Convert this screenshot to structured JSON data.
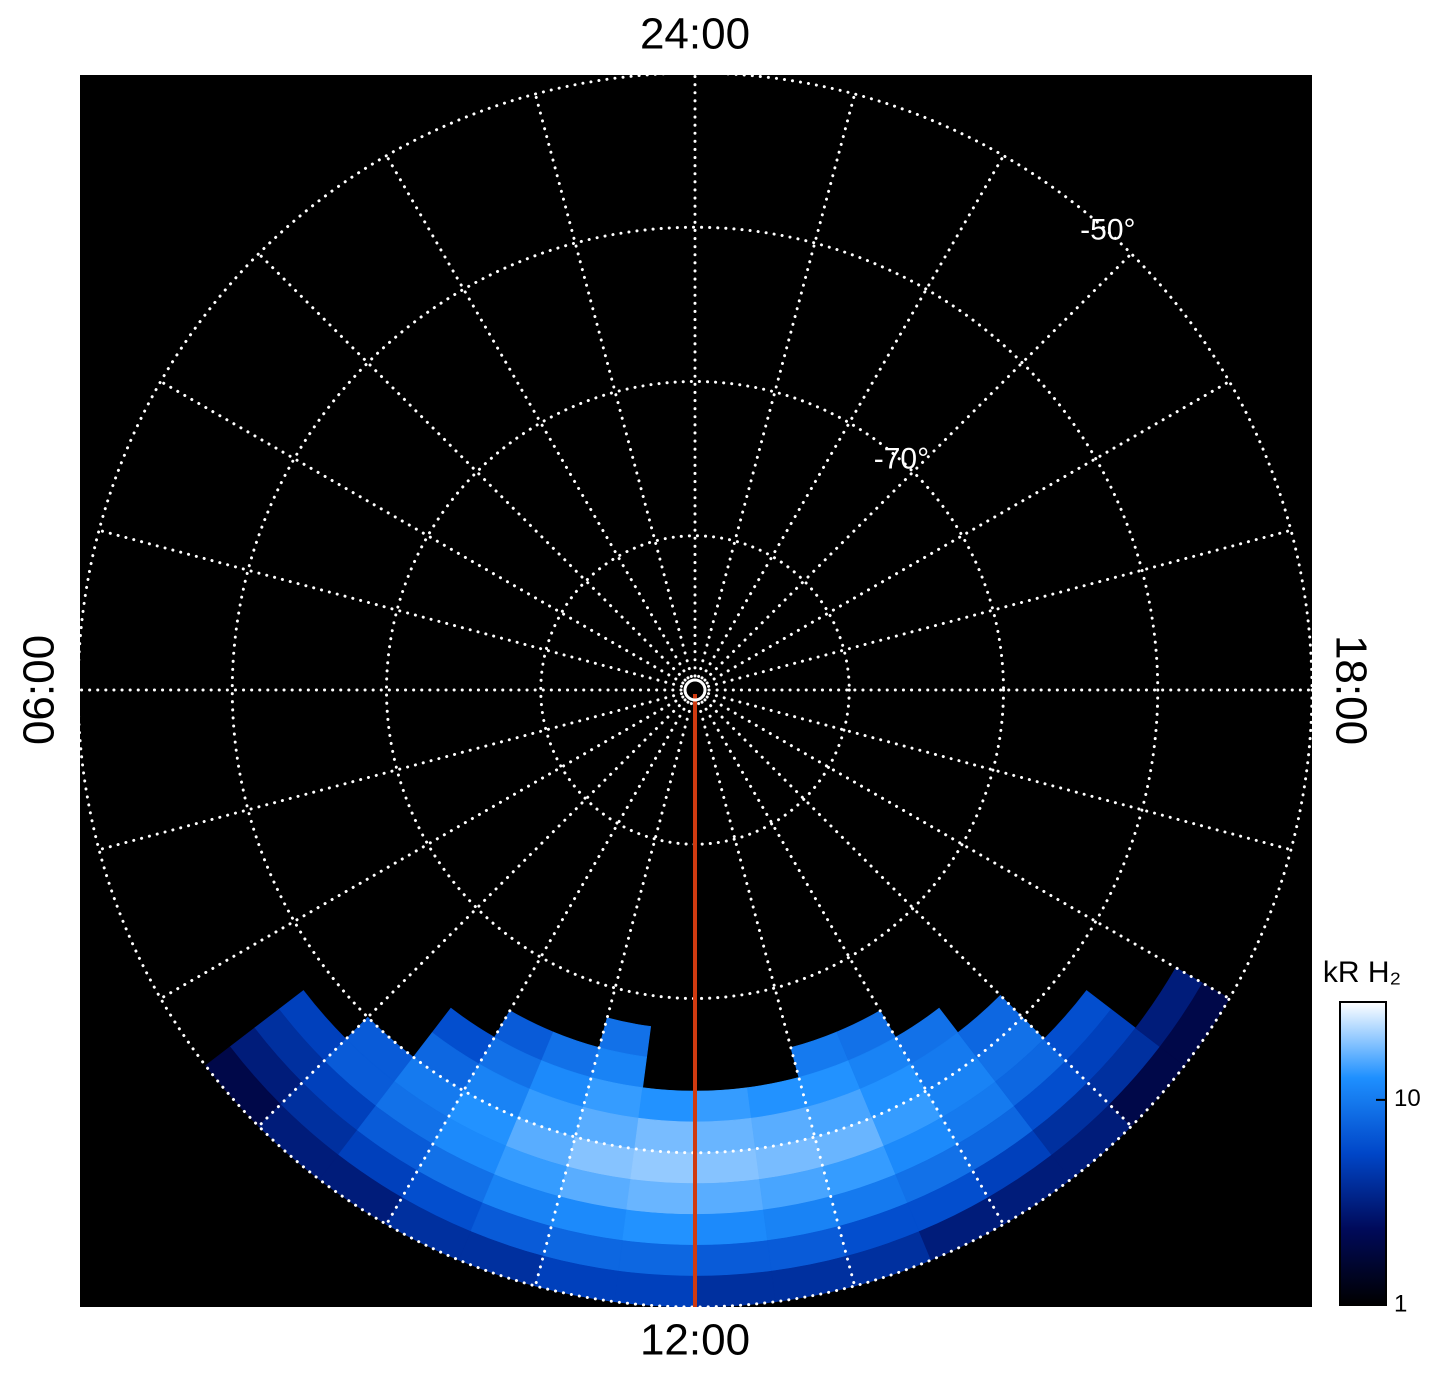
{
  "chart_data": {
    "type": "polar-heatmap",
    "lt_labels": [
      {
        "value": 24,
        "label": "24:00"
      },
      {
        "value": 6,
        "label": "06:00"
      },
      {
        "value": 18,
        "label": "18:00"
      },
      {
        "value": 12,
        "label": "12:00"
      }
    ],
    "lat_labels": [
      {
        "value": -70,
        "label": "-70°"
      },
      {
        "value": -50,
        "label": "-50°"
      }
    ],
    "rlim": [
      -90,
      -50
    ],
    "lat_circles": [
      -80,
      -70,
      -60,
      -50
    ],
    "lt_lines": [
      0,
      1,
      2,
      3,
      4,
      5,
      6,
      7,
      8,
      9,
      10,
      11,
      12,
      13,
      14,
      15,
      16,
      17,
      18,
      19,
      20,
      21,
      22,
      23
    ],
    "lt_bins": [
      8.5,
      9,
      9.5,
      10,
      10.5,
      11,
      11.5,
      12,
      12.5,
      13,
      13.5,
      14,
      14.5,
      15,
      15.5,
      16
    ],
    "lat_bins": [
      -68,
      -66,
      -64,
      -62,
      -60,
      -58,
      -56,
      -54,
      -52,
      -50
    ],
    "values": [
      [
        null,
        null,
        null,
        null,
        null,
        9,
        null,
        null,
        null,
        null,
        null,
        null,
        null,
        null,
        null
      ],
      [
        null,
        null,
        null,
        7,
        9,
        11,
        null,
        null,
        null,
        10,
        9,
        null,
        null,
        null,
        null
      ],
      [
        null,
        null,
        6,
        9,
        12,
        14,
        13,
        14,
        13,
        13,
        11,
        9,
        null,
        null,
        null
      ],
      [
        null,
        null,
        8,
        11,
        14,
        16,
        18,
        17,
        16,
        15,
        13,
        10,
        8,
        null,
        null
      ],
      [
        null,
        7,
        10,
        13,
        16,
        19,
        20,
        19,
        18,
        17,
        14,
        11,
        9,
        null,
        null
      ],
      [
        5,
        7,
        9,
        12,
        14,
        16,
        17,
        16,
        15,
        14,
        12,
        10,
        8,
        6,
        null
      ],
      [
        4,
        5,
        7,
        9,
        11,
        12,
        13,
        12,
        11,
        10,
        9,
        8,
        6,
        5,
        null
      ],
      [
        3,
        4,
        5,
        6,
        7,
        8,
        8,
        7,
        7,
        6,
        6,
        5,
        4,
        4,
        3
      ],
      [
        2,
        3,
        3,
        4,
        4,
        5,
        5,
        4,
        4,
        4,
        3,
        3,
        3,
        2,
        2
      ]
    ],
    "colorbar_label": "kR H₂",
    "zlim": [
      1,
      30
    ],
    "zticks": [
      1,
      10
    ],
    "log_scale": true,
    "colormap": [
      "#000000",
      "#000a5a",
      "#0046c8",
      "#1e90ff",
      "#ffffff"
    ]
  }
}
